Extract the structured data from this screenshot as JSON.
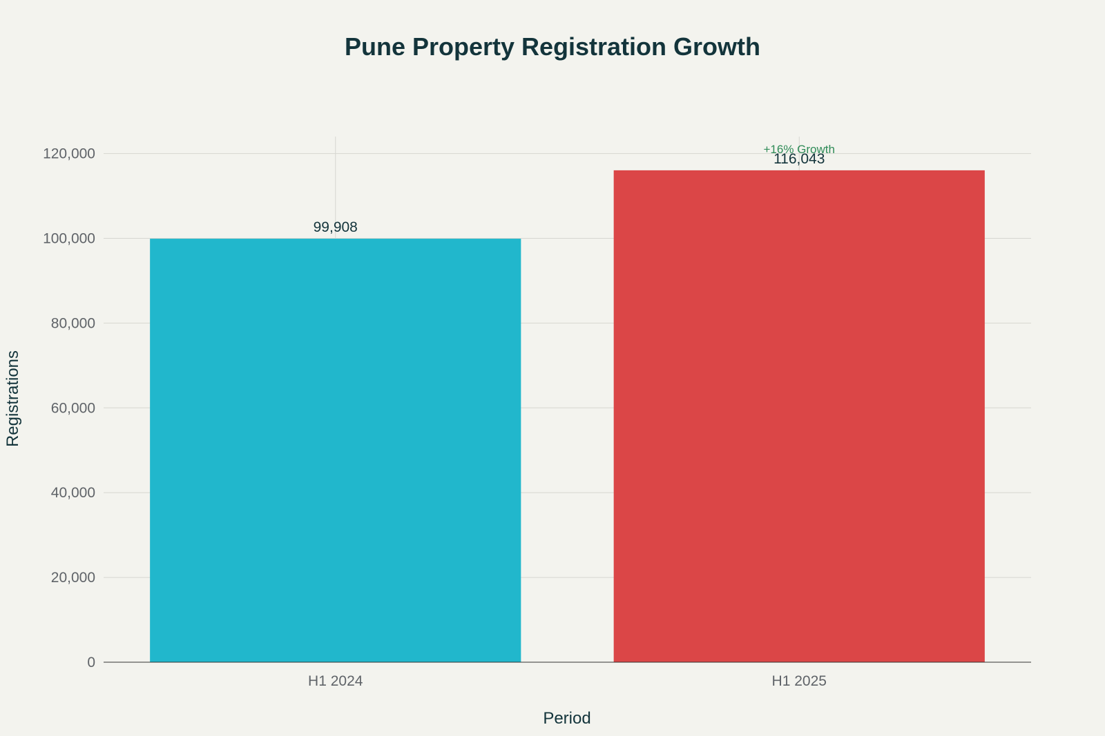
{
  "chart_data": {
    "type": "bar",
    "title": "Pune Property Registration Growth",
    "xlabel": "Period",
    "ylabel": "Registrations",
    "categories": [
      "H1 2024",
      "H1 2025"
    ],
    "values": [
      99908,
      116043
    ],
    "data_labels": [
      "99,908",
      "116,043"
    ],
    "bar_colors": [
      "#21b7cc",
      "#db4647"
    ],
    "ylim": [
      0,
      124000
    ],
    "yticks": [
      0,
      20000,
      40000,
      60000,
      80000,
      100000,
      120000
    ],
    "ytick_labels": [
      "0",
      "20,000",
      "40,000",
      "60,000",
      "80,000",
      "100,000",
      "120,000"
    ],
    "grid": true,
    "legend": "none",
    "annotation": {
      "text": "+16% Growth",
      "category": "H1 2025",
      "value": 116043,
      "color": "#2e8b57"
    }
  }
}
